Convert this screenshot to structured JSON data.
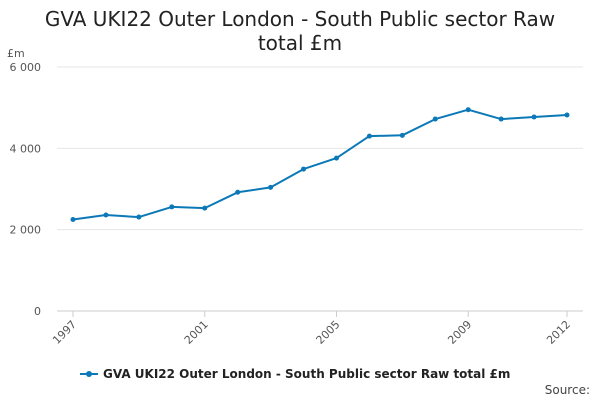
{
  "chart_data": {
    "type": "line",
    "title": "GVA UKI22 Outer London - South Public sector Raw total £m",
    "xlabel": "",
    "ylabel": "£m",
    "x": [
      1997,
      1998,
      1999,
      2000,
      2001,
      2002,
      2003,
      2004,
      2005,
      2006,
      2007,
      2008,
      2009,
      2010,
      2011,
      2012
    ],
    "series": [
      {
        "name": "GVA UKI22 Outer London - South Public sector Raw total £m",
        "values": [
          2250,
          2360,
          2310,
          2560,
          2530,
          2920,
          3040,
          3490,
          3760,
          4300,
          4320,
          4720,
          4950,
          4720,
          4770,
          4820
        ]
      }
    ],
    "xticks": [
      "1997",
      "2001",
      "2005",
      "2009",
      "2012"
    ],
    "yticks": [
      "0",
      "2 000",
      "4 000",
      "6 000"
    ],
    "ytick_values": [
      0,
      2000,
      4000,
      6000
    ],
    "xlim": [
      1997,
      2012
    ],
    "ylim": [
      0,
      6000
    ],
    "grid": "horizontal",
    "legend_position": "bottom",
    "color": "#0b79b7"
  },
  "source_label": "Source:"
}
